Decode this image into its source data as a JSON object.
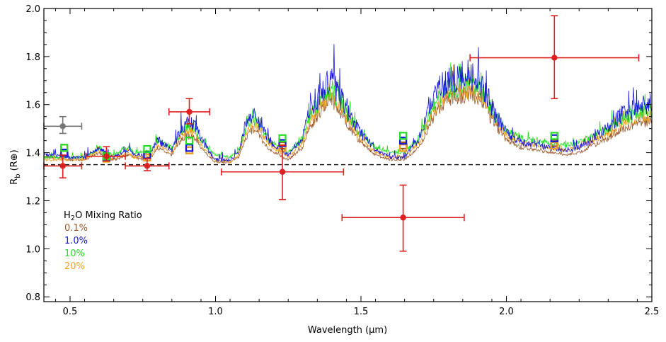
{
  "chart_data": {
    "type": "line",
    "xlabel": "Wavelength (µm)",
    "ylabel": "R",
    "ylabel_sub": "b",
    "ylabel_unit": "(R⊕)",
    "xlim": [
      0.41,
      2.5
    ],
    "ylim": [
      0.78,
      2.0
    ],
    "xticks": [
      0.5,
      1.0,
      1.5,
      2.0,
      2.5
    ],
    "xtick_labels": [
      "0.5",
      "1.0",
      "1.5",
      "2.0",
      "2.5"
    ],
    "yticks": [
      0.8,
      1.0,
      1.2,
      1.4,
      1.6,
      1.8,
      2.0
    ],
    "ytick_labels": [
      "0.8",
      "1.0",
      "1.2",
      "1.4",
      "1.6",
      "1.8",
      "2.0"
    ],
    "reference_line": {
      "y": 1.35,
      "style": "dashed",
      "color": "#000000"
    },
    "legend": {
      "title": "H",
      "title_sub": "2",
      "title_rest": "O Mixing Ratio",
      "placement": "lower-left",
      "entries": [
        {
          "label": "0.1%",
          "color": "#9c5a2c"
        },
        {
          "label": "1.0%",
          "color": "#1616d8"
        },
        {
          "label": "10%",
          "color": "#22dd22"
        },
        {
          "label": "20%",
          "color": "#f0a020"
        }
      ]
    },
    "model_series": [
      {
        "legend_label": "0.1%",
        "color": "#9c5a2c",
        "x": [
          0.41,
          0.45,
          0.5,
          0.55,
          0.6,
          0.62,
          0.65,
          0.7,
          0.72,
          0.75,
          0.78,
          0.8,
          0.85,
          0.88,
          0.9,
          0.93,
          0.95,
          0.98,
          1.0,
          1.05,
          1.08,
          1.1,
          1.13,
          1.15,
          1.18,
          1.2,
          1.25,
          1.3,
          1.32,
          1.35,
          1.38,
          1.4,
          1.42,
          1.45,
          1.48,
          1.5,
          1.55,
          1.6,
          1.65,
          1.7,
          1.75,
          1.8,
          1.85,
          1.9,
          1.93,
          1.95,
          2.0,
          2.05,
          2.1,
          2.15,
          2.2,
          2.25,
          2.3,
          2.35,
          2.4,
          2.45,
          2.5
        ],
        "y": [
          1.38,
          1.38,
          1.37,
          1.37,
          1.4,
          1.38,
          1.37,
          1.39,
          1.38,
          1.37,
          1.38,
          1.42,
          1.39,
          1.45,
          1.47,
          1.46,
          1.42,
          1.38,
          1.36,
          1.36,
          1.38,
          1.45,
          1.5,
          1.47,
          1.42,
          1.4,
          1.37,
          1.42,
          1.5,
          1.55,
          1.6,
          1.62,
          1.58,
          1.52,
          1.47,
          1.44,
          1.39,
          1.37,
          1.37,
          1.42,
          1.55,
          1.62,
          1.64,
          1.63,
          1.58,
          1.53,
          1.45,
          1.42,
          1.41,
          1.4,
          1.39,
          1.4,
          1.43,
          1.46,
          1.5,
          1.52,
          1.53
        ],
        "amp": 0.07
      },
      {
        "legend_label": "20%",
        "color": "#f0a020",
        "x": [
          0.41,
          0.45,
          0.5,
          0.55,
          0.6,
          0.62,
          0.65,
          0.7,
          0.72,
          0.75,
          0.78,
          0.8,
          0.85,
          0.88,
          0.9,
          0.93,
          0.95,
          0.98,
          1.0,
          1.05,
          1.08,
          1.1,
          1.13,
          1.15,
          1.18,
          1.2,
          1.25,
          1.3,
          1.32,
          1.35,
          1.38,
          1.4,
          1.42,
          1.45,
          1.48,
          1.5,
          1.55,
          1.6,
          1.65,
          1.7,
          1.75,
          1.8,
          1.85,
          1.9,
          1.93,
          1.95,
          2.0,
          2.05,
          2.1,
          2.15,
          2.2,
          2.25,
          2.3,
          2.35,
          2.4,
          2.45,
          2.5
        ],
        "y": [
          1.37,
          1.37,
          1.37,
          1.37,
          1.41,
          1.38,
          1.37,
          1.4,
          1.38,
          1.38,
          1.39,
          1.43,
          1.4,
          1.46,
          1.49,
          1.48,
          1.43,
          1.39,
          1.37,
          1.36,
          1.39,
          1.47,
          1.52,
          1.49,
          1.44,
          1.42,
          1.38,
          1.44,
          1.52,
          1.57,
          1.62,
          1.64,
          1.6,
          1.54,
          1.49,
          1.46,
          1.4,
          1.38,
          1.38,
          1.44,
          1.57,
          1.64,
          1.66,
          1.65,
          1.6,
          1.55,
          1.47,
          1.44,
          1.43,
          1.42,
          1.41,
          1.42,
          1.45,
          1.48,
          1.52,
          1.54,
          1.55
        ],
        "amp": 0.07
      },
      {
        "legend_label": "10%",
        "color": "#22dd22",
        "x": [
          0.41,
          0.45,
          0.5,
          0.55,
          0.6,
          0.62,
          0.65,
          0.7,
          0.72,
          0.75,
          0.78,
          0.8,
          0.85,
          0.88,
          0.9,
          0.93,
          0.95,
          0.98,
          1.0,
          1.05,
          1.08,
          1.1,
          1.13,
          1.15,
          1.18,
          1.2,
          1.25,
          1.3,
          1.32,
          1.35,
          1.38,
          1.4,
          1.42,
          1.45,
          1.48,
          1.5,
          1.55,
          1.6,
          1.65,
          1.7,
          1.75,
          1.8,
          1.85,
          1.9,
          1.93,
          1.95,
          2.0,
          2.05,
          2.1,
          2.15,
          2.2,
          2.25,
          2.3,
          2.35,
          2.4,
          2.45,
          2.5
        ],
        "y": [
          1.38,
          1.38,
          1.38,
          1.38,
          1.42,
          1.4,
          1.39,
          1.42,
          1.4,
          1.4,
          1.41,
          1.45,
          1.42,
          1.48,
          1.51,
          1.5,
          1.45,
          1.41,
          1.39,
          1.38,
          1.41,
          1.49,
          1.54,
          1.51,
          1.46,
          1.44,
          1.4,
          1.46,
          1.54,
          1.59,
          1.64,
          1.66,
          1.62,
          1.56,
          1.51,
          1.48,
          1.42,
          1.4,
          1.4,
          1.46,
          1.59,
          1.66,
          1.68,
          1.67,
          1.62,
          1.57,
          1.49,
          1.46,
          1.45,
          1.44,
          1.43,
          1.44,
          1.47,
          1.5,
          1.54,
          1.56,
          1.57
        ],
        "amp": 0.08
      },
      {
        "legend_label": "1.0%",
        "color": "#1616d8",
        "x": [
          0.41,
          0.45,
          0.5,
          0.55,
          0.6,
          0.62,
          0.65,
          0.7,
          0.72,
          0.75,
          0.78,
          0.8,
          0.85,
          0.88,
          0.9,
          0.93,
          0.95,
          0.98,
          1.0,
          1.05,
          1.08,
          1.1,
          1.13,
          1.15,
          1.18,
          1.2,
          1.25,
          1.3,
          1.32,
          1.35,
          1.38,
          1.4,
          1.42,
          1.45,
          1.48,
          1.5,
          1.55,
          1.6,
          1.65,
          1.7,
          1.75,
          1.8,
          1.85,
          1.9,
          1.93,
          1.95,
          2.0,
          2.05,
          2.1,
          2.15,
          2.2,
          2.25,
          2.3,
          2.35,
          2.4,
          2.45,
          2.5
        ],
        "y": [
          1.39,
          1.39,
          1.38,
          1.38,
          1.42,
          1.4,
          1.38,
          1.41,
          1.39,
          1.39,
          1.4,
          1.45,
          1.41,
          1.49,
          1.52,
          1.51,
          1.46,
          1.4,
          1.37,
          1.37,
          1.4,
          1.5,
          1.56,
          1.52,
          1.46,
          1.43,
          1.39,
          1.46,
          1.56,
          1.62,
          1.68,
          1.7,
          1.65,
          1.57,
          1.52,
          1.48,
          1.41,
          1.38,
          1.38,
          1.46,
          1.62,
          1.7,
          1.72,
          1.71,
          1.65,
          1.58,
          1.48,
          1.44,
          1.43,
          1.42,
          1.41,
          1.42,
          1.46,
          1.5,
          1.56,
          1.58,
          1.6
        ],
        "amp": 0.1
      }
    ],
    "binned_points": [
      {
        "x": 0.48,
        "values": {
          "0.1%": 1.4,
          "1.0%": 1.4,
          "10%": 1.42,
          "20%": 1.42
        }
      },
      {
        "x": 0.625,
        "values": {
          "0.1%": 1.38,
          "1.0%": 1.38,
          "10%": 1.385,
          "20%": 1.375
        }
      },
      {
        "x": 0.765,
        "values": {
          "0.1%": 1.38,
          "1.0%": 1.39,
          "10%": 1.415,
          "20%": 1.38
        }
      },
      {
        "x": 0.91,
        "values": {
          "0.1%": 1.41,
          "1.0%": 1.42,
          "10%": 1.45,
          "20%": 1.41
        }
      },
      {
        "x": 1.23,
        "values": {
          "0.1%": 1.43,
          "1.0%": 1.44,
          "10%": 1.46,
          "20%": 1.42
        }
      },
      {
        "x": 1.645,
        "values": {
          "0.1%": 1.43,
          "1.0%": 1.45,
          "10%": 1.47,
          "20%": 1.42
        }
      },
      {
        "x": 2.165,
        "values": {
          "0.1%": 1.44,
          "1.0%": 1.46,
          "10%": 1.47,
          "20%": 1.43
        }
      }
    ],
    "observations": [
      {
        "x": 0.475,
        "y": 1.51,
        "xerr": [
          0.41,
          0.54
        ],
        "yerr": [
          1.48,
          1.55
        ],
        "color": "#777777"
      },
      {
        "x": 0.475,
        "y": 1.345,
        "xerr": [
          0.41,
          0.54
        ],
        "yerr": [
          1.295,
          1.39
        ],
        "color": "#e02020"
      },
      {
        "x": 0.625,
        "y": 1.385,
        "xerr": [
          0.555,
          0.69
        ],
        "yerr": [
          1.365,
          1.425
        ],
        "color": "#e02020"
      },
      {
        "x": 0.765,
        "y": 1.345,
        "xerr": [
          0.69,
          0.84
        ],
        "yerr": [
          1.325,
          1.375
        ],
        "color": "#e02020"
      },
      {
        "x": 0.91,
        "y": 1.57,
        "xerr": [
          0.84,
          0.98
        ],
        "yerr": [
          1.52,
          1.625
        ],
        "color": "#e02020"
      },
      {
        "x": 1.23,
        "y": 1.32,
        "xerr": [
          1.02,
          1.44
        ],
        "yerr": [
          1.205,
          1.43
        ],
        "color": "#e02020"
      },
      {
        "x": 1.645,
        "y": 1.13,
        "xerr": [
          1.435,
          1.855
        ],
        "yerr": [
          0.99,
          1.265
        ],
        "color": "#e02020"
      },
      {
        "x": 2.165,
        "y": 1.795,
        "xerr": [
          1.875,
          2.455
        ],
        "yerr": [
          1.625,
          1.97
        ],
        "color": "#e02020"
      }
    ]
  }
}
